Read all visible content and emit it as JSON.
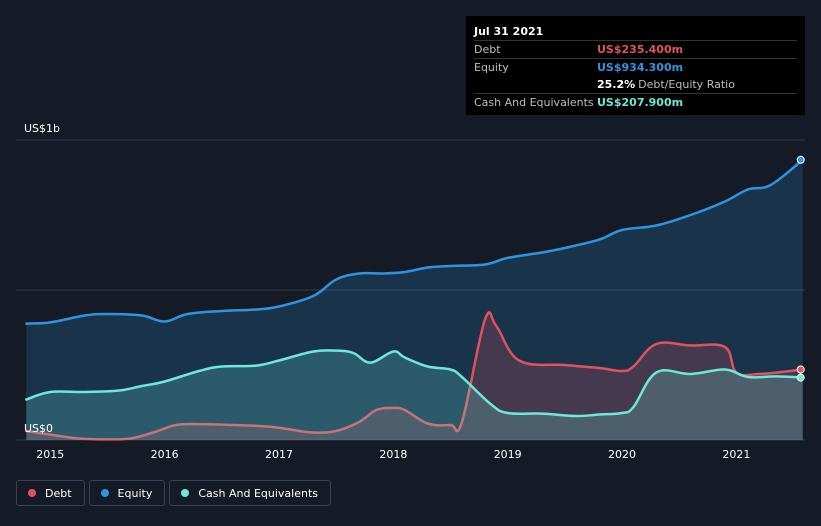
{
  "tooltip": {
    "date": "Jul 31 2021",
    "debt_label": "Debt",
    "debt_value": "US$235.400m",
    "equity_label": "Equity",
    "equity_value": "US$934.300m",
    "ratio_value": "25.2%",
    "ratio_label": "Debt/Equity Ratio",
    "cash_label": "Cash And Equivalents",
    "cash_value": "US$207.900m"
  },
  "legend": {
    "debt": "Debt",
    "equity": "Equity",
    "cash": "Cash And Equivalents"
  },
  "colors": {
    "debt": "#e0525f",
    "equity": "#2f94e0",
    "cash": "#6de8d9",
    "grid": "#323946",
    "axis_text": "#ffffff"
  },
  "chart_data": {
    "type": "area",
    "y_axis_labels": [
      "US$0",
      "US$1b"
    ],
    "x_tick_labels": [
      "2015",
      "2016",
      "2017",
      "2018",
      "2019",
      "2020",
      "2021"
    ],
    "x_tick_values": [
      2015,
      2016,
      2017,
      2018,
      2019,
      2020,
      2021
    ],
    "xlim": [
      2014.7,
      2021.6
    ],
    "ylim": [
      0,
      1000
    ],
    "grid": true,
    "series": [
      {
        "name": "Debt",
        "key": "debt",
        "x": [
          2014.79,
          2015.0,
          2015.25,
          2015.5,
          2015.7,
          2015.9,
          2016.1,
          2016.3,
          2016.6,
          2016.9,
          2017.1,
          2017.3,
          2017.5,
          2017.7,
          2017.85,
          2018.0,
          2018.1,
          2018.3,
          2018.5,
          2018.6,
          2018.8,
          2018.9,
          2019.1,
          2019.5,
          2019.8,
          2020.0,
          2020.1,
          2020.3,
          2020.6,
          2020.9,
          2021.0,
          2021.2,
          2021.58
        ],
        "y": [
          30,
          18,
          5,
          2,
          5,
          25,
          50,
          53,
          50,
          45,
          35,
          25,
          30,
          60,
          100,
          107,
          100,
          55,
          50,
          60,
          400,
          380,
          265,
          250,
          240,
          230,
          245,
          320,
          315,
          310,
          225,
          220,
          235
        ]
      },
      {
        "name": "Equity",
        "key": "equity",
        "x": [
          2014.79,
          2015.0,
          2015.3,
          2015.5,
          2015.8,
          2016.0,
          2016.2,
          2016.5,
          2016.8,
          2017.0,
          2017.3,
          2017.5,
          2017.7,
          2017.9,
          2018.1,
          2018.3,
          2018.5,
          2018.8,
          2019.0,
          2019.3,
          2019.5,
          2019.8,
          2020.0,
          2020.3,
          2020.6,
          2020.9,
          2021.1,
          2021.3,
          2021.58
        ],
        "y": [
          388,
          392,
          415,
          420,
          415,
          395,
          420,
          430,
          435,
          445,
          480,
          535,
          555,
          555,
          560,
          575,
          580,
          585,
          607,
          625,
          640,
          668,
          700,
          715,
          750,
          795,
          835,
          850,
          934
        ]
      },
      {
        "name": "Cash And Equivalents",
        "key": "cash",
        "x": [
          2014.79,
          2015.0,
          2015.3,
          2015.6,
          2015.8,
          2016.0,
          2016.3,
          2016.5,
          2016.8,
          2017.0,
          2017.3,
          2017.5,
          2017.65,
          2017.8,
          2018.0,
          2018.1,
          2018.3,
          2018.5,
          2018.6,
          2018.85,
          2019.0,
          2019.3,
          2019.6,
          2019.8,
          2020.0,
          2020.1,
          2020.3,
          2020.6,
          2020.9,
          2021.1,
          2021.35,
          2021.58
        ],
        "y": [
          135,
          160,
          160,
          165,
          180,
          195,
          230,
          245,
          248,
          265,
          295,
          298,
          290,
          258,
          295,
          275,
          245,
          235,
          210,
          120,
          90,
          88,
          80,
          85,
          90,
          110,
          225,
          220,
          235,
          210,
          212,
          208
        ]
      }
    ]
  }
}
